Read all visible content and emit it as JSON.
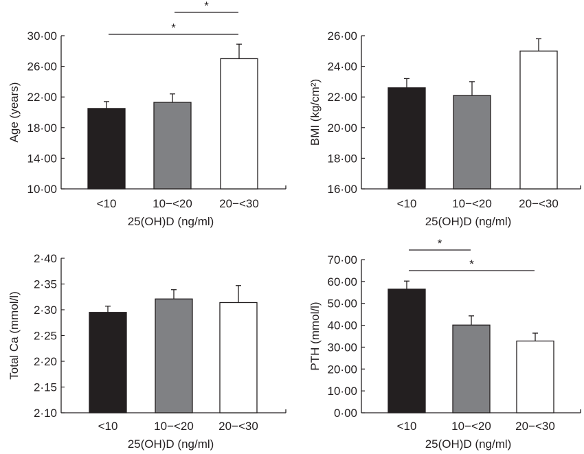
{
  "chart_data": [
    {
      "type": "bar",
      "categories": [
        "<10",
        "10−<20",
        "20−<30"
      ],
      "values": [
        20.5,
        21.3,
        27.0
      ],
      "errors": [
        0.9,
        1.1,
        1.9
      ],
      "xlabel": "25(OH)D (ng/ml)",
      "ylabel": "Age (years)",
      "ylim": [
        10,
        30
      ],
      "yticks": [
        "10·00",
        "14·00",
        "18·00",
        "22·00",
        "26·00",
        "30·00"
      ],
      "ytick_values": [
        10,
        14,
        18,
        22,
        26,
        30
      ],
      "significance": [
        {
          "from": 0,
          "to": 2,
          "label": "*"
        },
        {
          "from": 1,
          "to": 2,
          "label": "*"
        }
      ],
      "grid": false
    },
    {
      "type": "bar",
      "categories": [
        "<10",
        "10−<20",
        "20−<30"
      ],
      "values": [
        22.6,
        22.1,
        25.0
      ],
      "errors": [
        0.6,
        0.9,
        0.8
      ],
      "xlabel": "25(OH)D (ng/ml)",
      "ylabel": "BMI (kg/cm²)",
      "ylim": [
        16,
        26
      ],
      "yticks": [
        "16·00",
        "18·00",
        "20·00",
        "22·00",
        "24·00",
        "26·00"
      ],
      "ytick_values": [
        16,
        18,
        20,
        22,
        24,
        26
      ],
      "significance": [],
      "grid": false
    },
    {
      "type": "bar",
      "categories": [
        "<10",
        "10−<20",
        "20−<30"
      ],
      "values": [
        2.295,
        2.321,
        2.314
      ],
      "errors": [
        0.012,
        0.018,
        0.033
      ],
      "xlabel": "25(OH)D (ng/ml)",
      "ylabel": "Total Ca (mmol/l)",
      "ylim": [
        2.1,
        2.4
      ],
      "yticks": [
        "2·10",
        "2·15",
        "2·20",
        "2·25",
        "2·30",
        "2·35",
        "2·40"
      ],
      "ytick_values": [
        2.1,
        2.15,
        2.2,
        2.25,
        2.3,
        2.35,
        2.4
      ],
      "significance": [],
      "grid": false
    },
    {
      "type": "bar",
      "categories": [
        "<10",
        "10−<20",
        "20−<30"
      ],
      "values": [
        56.5,
        40.1,
        32.8
      ],
      "errors": [
        3.7,
        4.2,
        3.6
      ],
      "xlabel": "25(OH)D (ng/ml)",
      "ylabel": "PTH (mmol/l)",
      "ylim": [
        0,
        70
      ],
      "yticks": [
        "0·00",
        "10·00",
        "20·00",
        "30·00",
        "40·00",
        "50·00",
        "60·00",
        "70·00"
      ],
      "ytick_values": [
        0,
        10,
        20,
        30,
        40,
        50,
        60,
        70
      ],
      "significance": [
        {
          "from": 0,
          "to": 1,
          "label": "*"
        },
        {
          "from": 0,
          "to": 2,
          "label": "*"
        }
      ],
      "grid": false
    }
  ],
  "bar_colors": [
    "#231f20",
    "#808184",
    "#ffffff"
  ],
  "axis_color": "#231f20"
}
